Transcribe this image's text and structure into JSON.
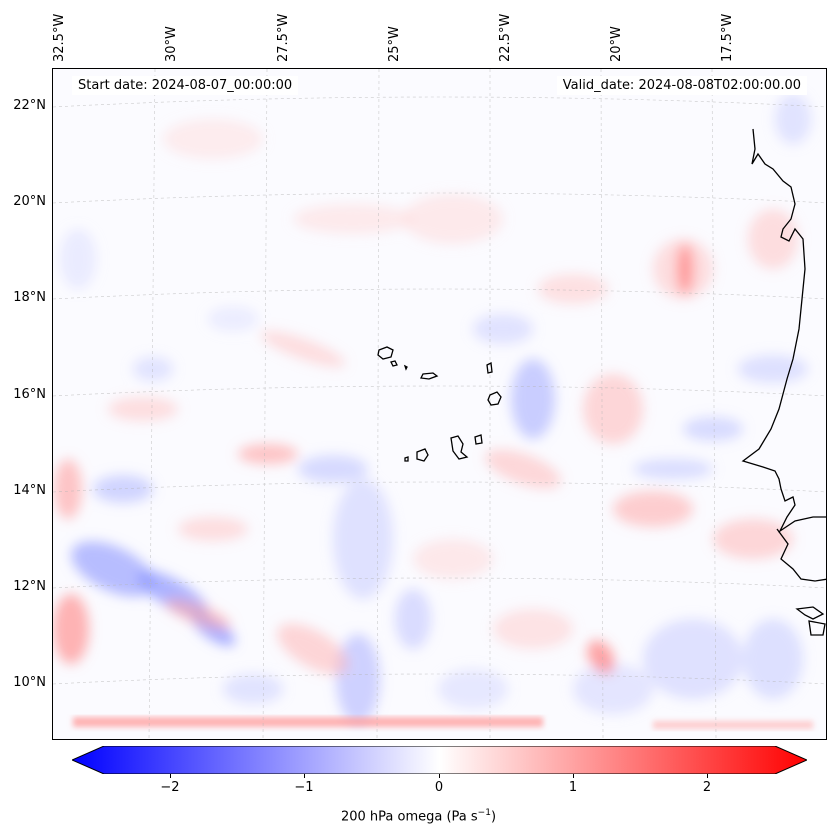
{
  "header": {
    "start_date": "Start date: 2024-08-07_00:00:00",
    "valid_date": "Valid_date: 2024-08-08T02:00:00.00"
  },
  "map": {
    "longitude_labels": [
      "32.5°W",
      "30°W",
      "27.5°W",
      "25°W",
      "22.5°W",
      "20°W",
      "17.5°W"
    ],
    "latitude_labels": [
      "22°N",
      "20°N",
      "18°N",
      "16°N",
      "14°N",
      "12°N",
      "10°N"
    ],
    "gridlines": true,
    "extent": {
      "lon_min": -32.7,
      "lon_max": -15.5,
      "lat_min": 8.9,
      "lat_max": 22.8
    },
    "colormap": "bwr",
    "positive_color": "#ff0000",
    "negative_color": "#0000ff",
    "coastline_color": "#000000"
  },
  "colorbar": {
    "ticks": [
      "−2",
      "−1",
      "0",
      "1",
      "2"
    ],
    "tick_values": [
      -2,
      -1,
      0,
      1,
      2
    ],
    "min": -2.5,
    "max": 2.5,
    "extend": "both",
    "label_main": "200 hPa omega (Pa s",
    "label_sup": "−1",
    "label_end": ")"
  }
}
